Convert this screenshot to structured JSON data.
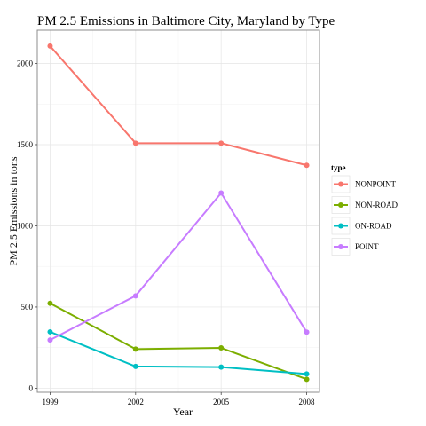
{
  "chart_data": {
    "type": "line",
    "title": "PM 2.5 Emissions in Baltimore City, Maryland by Type",
    "xlabel": "Year",
    "ylabel": "PM 2.5 Emissions in tons",
    "x": [
      1999,
      2002,
      2005,
      2008
    ],
    "x_tick_labels": [
      "1999",
      "2002",
      "2005",
      "2008"
    ],
    "xlim": [
      1998.55,
      2008.45
    ],
    "y_ticks": [
      0,
      500,
      1000,
      1500,
      2000
    ],
    "y_tick_labels": [
      "0",
      "500",
      "1000",
      "1500",
      "2000"
    ],
    "ylim": [
      -25,
      2205
    ],
    "grid": true,
    "legend_title": "type",
    "legend_position": "right",
    "series": [
      {
        "name": "NONPOINT",
        "color": "#F8766D",
        "values": [
          2107,
          1509,
          1509,
          1373
        ]
      },
      {
        "name": "NON-ROAD",
        "color": "#7CAE00",
        "values": [
          523,
          241,
          248,
          55
        ]
      },
      {
        "name": "ON-ROAD",
        "color": "#00BFC4",
        "values": [
          347,
          134,
          130,
          88
        ]
      },
      {
        "name": "POINT",
        "color": "#C77CFF",
        "values": [
          297,
          569,
          1202,
          345
        ]
      }
    ]
  }
}
